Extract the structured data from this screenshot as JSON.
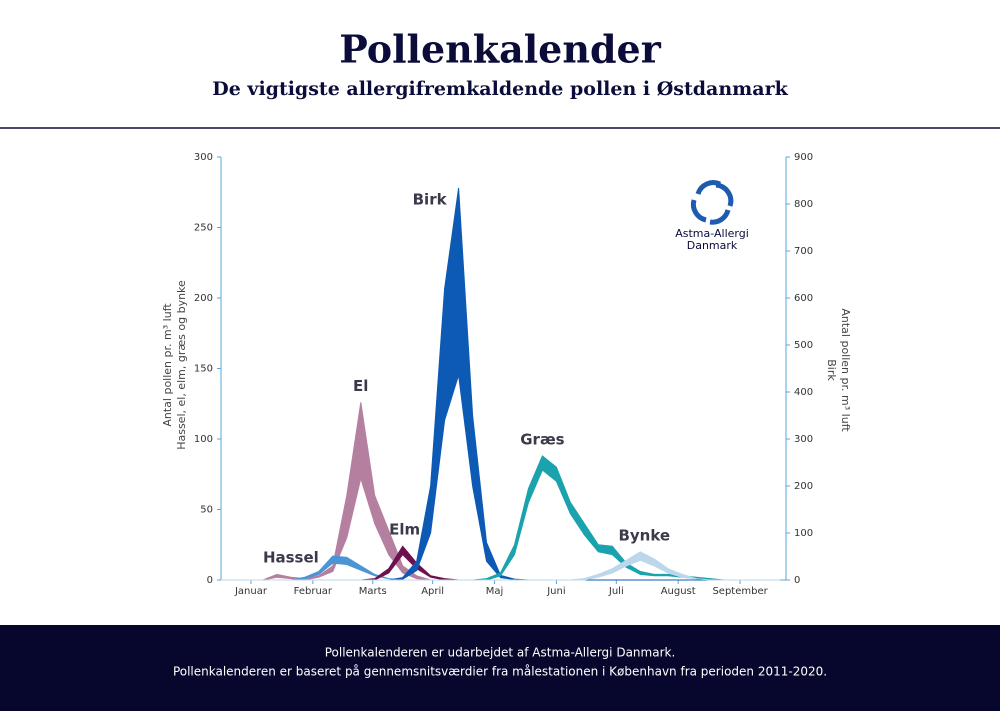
{
  "chart_data": {
    "type": "band",
    "title": "Pollenkalender",
    "subtitle": "De vigtigste allergifremkaldende pollen i Østdanmark",
    "ylabel": [
      "Antal pollen pr. m³ luft",
      "Hassel, el, elm, græs og bynke"
    ],
    "y2label": [
      "Antal pollen pr. m³ luft",
      "Birk"
    ],
    "logo": [
      "Astma-Allergi",
      "Danmark"
    ],
    "x": [
      0,
      7,
      14,
      21,
      28,
      35,
      42,
      49,
      56,
      63,
      70,
      77,
      84,
      91,
      98,
      105,
      112,
      119,
      126,
      133,
      140,
      147,
      154,
      161,
      168,
      175,
      182,
      189,
      196,
      203,
      210,
      217,
      224,
      231,
      238,
      245,
      252,
      259,
      266,
      273,
      280
    ],
    "xlim": [
      0,
      283
    ],
    "xticks": [
      {
        "value": 15,
        "label": "Januar"
      },
      {
        "value": 46,
        "label": "Februar"
      },
      {
        "value": 76,
        "label": "Marts"
      },
      {
        "value": 106,
        "label": "April"
      },
      {
        "value": 137,
        "label": "Maj"
      },
      {
        "value": 168,
        "label": "Juni"
      },
      {
        "value": 198,
        "label": "Juli"
      },
      {
        "value": 229,
        "label": "August"
      },
      {
        "value": 260,
        "label": "September"
      }
    ],
    "ylim": [
      0,
      300
    ],
    "yticks": [
      0,
      50,
      100,
      150,
      200,
      250,
      300
    ],
    "y2lim": [
      0,
      900
    ],
    "y2ticks": [
      0,
      100,
      200,
      300,
      400,
      500,
      600,
      700,
      800,
      900
    ],
    "series": [
      {
        "name": "El",
        "color": "#b5809f",
        "values": [
          0,
          0,
          0,
          0,
          4,
          2,
          1,
          3,
          10,
          60,
          126,
          60,
          35,
          10,
          3,
          0,
          0,
          0,
          0,
          0,
          0,
          0,
          0,
          0,
          0,
          0,
          0,
          0,
          0,
          0,
          0,
          0,
          0,
          0,
          0,
          0,
          0,
          0,
          0,
          0,
          0
        ],
        "low": [
          0,
          0,
          0,
          0,
          2,
          1,
          0,
          2,
          6,
          30,
          72,
          40,
          18,
          5,
          1,
          0,
          0,
          0,
          0,
          0,
          0,
          0,
          0,
          0,
          0,
          0,
          0,
          0,
          0,
          0,
          0,
          0,
          0,
          0,
          0,
          0,
          0,
          0,
          0,
          0,
          0
        ]
      },
      {
        "name": "Hassel",
        "color": "#4b95d6",
        "values": [
          0,
          0,
          0,
          0,
          0,
          0,
          2,
          6,
          17,
          16,
          10,
          4,
          1,
          0,
          0,
          0,
          0,
          0,
          0,
          0,
          0,
          0,
          0,
          0,
          0,
          0,
          0,
          0,
          0,
          0,
          0,
          0,
          0,
          0,
          0,
          0,
          0,
          0,
          0,
          0,
          0
        ],
        "low": [
          0,
          0,
          0,
          0,
          0,
          0,
          1,
          4,
          12,
          11,
          7,
          3,
          1,
          0,
          0,
          0,
          0,
          0,
          0,
          0,
          0,
          0,
          0,
          0,
          0,
          0,
          0,
          0,
          0,
          0,
          0,
          0,
          0,
          0,
          0,
          0,
          0,
          0,
          0,
          0,
          0
        ]
      },
      {
        "name": "Elm",
        "color": "#6d1050",
        "values": [
          0,
          0,
          0,
          0,
          0,
          0,
          0,
          0,
          0,
          0,
          0,
          1,
          8,
          24,
          12,
          3,
          1,
          0,
          0,
          0,
          0,
          0,
          0,
          0,
          0,
          0,
          0,
          0,
          0,
          0,
          0,
          0,
          0,
          0,
          0,
          0,
          0,
          0,
          0,
          0,
          0
        ],
        "low": [
          0,
          0,
          0,
          0,
          0,
          0,
          0,
          0,
          0,
          0,
          0,
          0,
          5,
          18,
          8,
          2,
          0,
          0,
          0,
          0,
          0,
          0,
          0,
          0,
          0,
          0,
          0,
          0,
          0,
          0,
          0,
          0,
          0,
          0,
          0,
          0,
          0,
          0,
          0,
          0,
          0
        ]
      },
      {
        "name": "Birk",
        "color": "#0d5ab4",
        "axis": "y2",
        "values": [
          0,
          0,
          0,
          0,
          0,
          0,
          0,
          0,
          0,
          0,
          0,
          0,
          0,
          5,
          40,
          200,
          620,
          834,
          350,
          80,
          10,
          2,
          0,
          0,
          0,
          0,
          0,
          0,
          0,
          0,
          0,
          0,
          0,
          0,
          0,
          0,
          0,
          0,
          0,
          0,
          0
        ],
        "low": [
          0,
          0,
          0,
          0,
          0,
          0,
          0,
          0,
          0,
          0,
          0,
          0,
          0,
          2,
          20,
          100,
          340,
          436,
          200,
          40,
          5,
          1,
          0,
          0,
          0,
          0,
          0,
          0,
          0,
          0,
          0,
          0,
          0,
          0,
          0,
          0,
          0,
          0,
          0,
          0,
          0
        ]
      },
      {
        "name": "Græs",
        "color": "#1aa3ad",
        "values": [
          0,
          0,
          0,
          0,
          0,
          0,
          0,
          0,
          0,
          0,
          0,
          0,
          0,
          0,
          0,
          0,
          0,
          0,
          0,
          1,
          5,
          25,
          65,
          88,
          80,
          55,
          40,
          25,
          24,
          12,
          6,
          4,
          4,
          3,
          2,
          1,
          0,
          0,
          0,
          0,
          0
        ],
        "low": [
          0,
          0,
          0,
          0,
          0,
          0,
          0,
          0,
          0,
          0,
          0,
          0,
          0,
          0,
          0,
          0,
          0,
          0,
          0,
          0,
          3,
          18,
          55,
          78,
          70,
          47,
          32,
          20,
          18,
          9,
          4,
          3,
          3,
          2,
          1,
          0,
          0,
          0,
          0,
          0,
          0
        ]
      },
      {
        "name": "Bynke",
        "color": "#bcd7ec",
        "values": [
          0,
          0,
          0,
          0,
          0,
          0,
          0,
          0,
          0,
          0,
          0,
          0,
          0,
          0,
          0,
          0,
          0,
          0,
          0,
          0,
          0,
          0,
          0,
          0,
          0,
          0,
          1,
          4,
          8,
          14,
          20,
          15,
          8,
          4,
          1,
          0,
          0,
          0,
          0,
          0,
          0
        ],
        "low": [
          0,
          0,
          0,
          0,
          0,
          0,
          0,
          0,
          0,
          0,
          0,
          0,
          0,
          0,
          0,
          0,
          0,
          0,
          0,
          0,
          0,
          0,
          0,
          0,
          0,
          0,
          0,
          2,
          5,
          10,
          14,
          10,
          5,
          2,
          1,
          0,
          0,
          0,
          0,
          0,
          0
        ]
      }
    ]
  },
  "footer": [
    "Pollenkalenderen er udarbejdet af Astma-Allergi Danmark.",
    "Pollenkalenderen er baseret på gennemsnitsværdier fra målestationen i København fra perioden 2011-2020."
  ]
}
